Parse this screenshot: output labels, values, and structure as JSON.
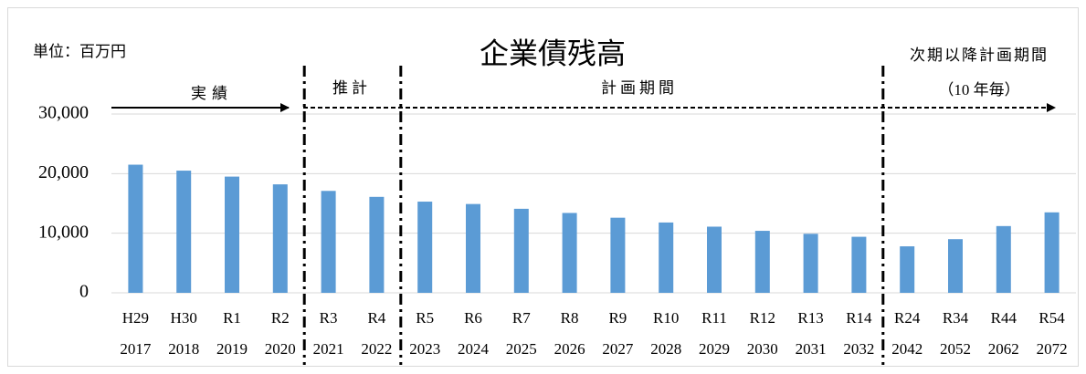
{
  "chart_data": {
    "type": "bar",
    "title": "企業債残高",
    "unit_label": "単位：百万円",
    "sections": [
      "実績",
      "推計",
      "計画期間"
    ],
    "future_label": [
      "次期以降計画期間",
      "（10 年毎）"
    ],
    "categories": [
      "H29",
      "H30",
      "R1",
      "R2",
      "R3",
      "R4",
      "R5",
      "R6",
      "R7",
      "R8",
      "R9",
      "R10",
      "R11",
      "R12",
      "R13",
      "R14",
      "R24",
      "R34",
      "R44",
      "R54"
    ],
    "category_years": [
      "2017",
      "2018",
      "2019",
      "2020",
      "2021",
      "2022",
      "2023",
      "2024",
      "2025",
      "2026",
      "2027",
      "2028",
      "2029",
      "2030",
      "2031",
      "2032",
      "2042",
      "2052",
      "2062",
      "2072"
    ],
    "values": [
      21500,
      20500,
      19500,
      18200,
      17100,
      16100,
      15300,
      14900,
      14100,
      13400,
      12600,
      11800,
      11100,
      10400,
      9900,
      9400,
      7800,
      9000,
      11200,
      13500
    ],
    "color": "#5b9bd5",
    "ylim": [
      0,
      30000
    ],
    "yticks": [
      0,
      {
        "value": 10000,
        "label": "10,000"
      },
      {
        "value": 20000,
        "label": "20,000"
      },
      {
        "value": 30000,
        "label": "30,000"
      }
    ],
    "grid": true
  }
}
